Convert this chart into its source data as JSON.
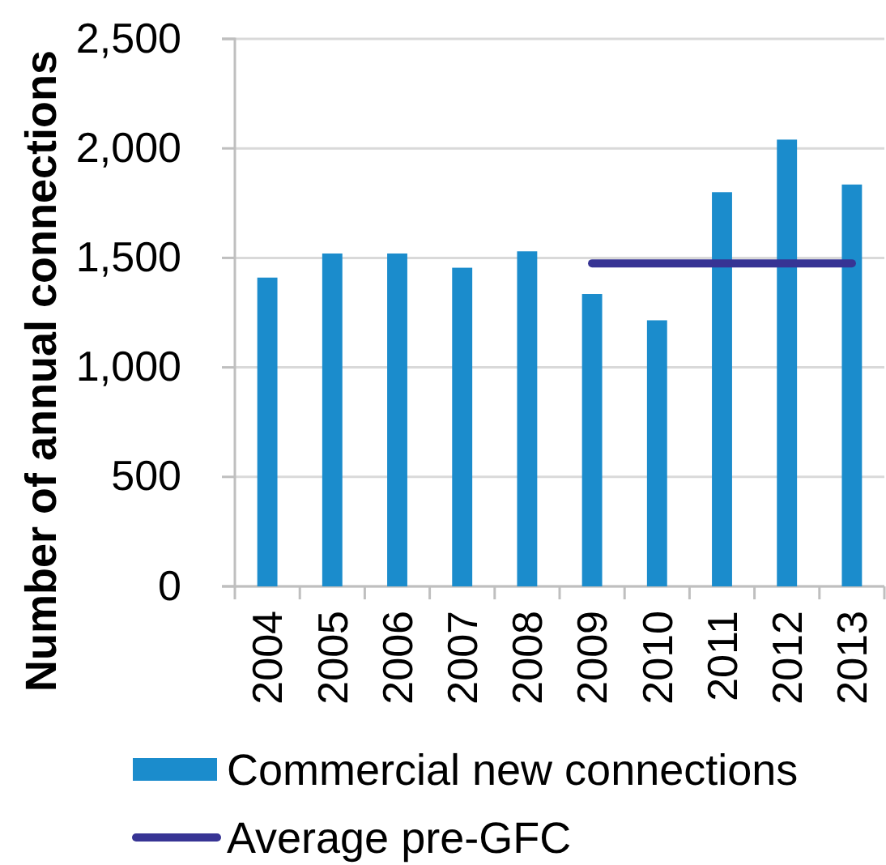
{
  "chart_data": {
    "type": "bar",
    "ylabel": "Number of annual connections",
    "categories": [
      "2004",
      "2005",
      "2006",
      "2007",
      "2008",
      "2009",
      "2010",
      "2011",
      "2012",
      "2013"
    ],
    "series": [
      {
        "name": "Commercial new connections",
        "color": "#1b8ccc",
        "values": [
          1410,
          1520,
          1520,
          1455,
          1530,
          1335,
          1215,
          1800,
          2040,
          1835
        ]
      },
      {
        "name": "Average pre-GFC",
        "type": "line",
        "color": "#373494",
        "values": [
          null,
          null,
          null,
          null,
          null,
          1475,
          1475,
          1475,
          1475,
          1475
        ]
      }
    ],
    "ylim": [
      0,
      2500
    ],
    "yticks": [
      0,
      500,
      {
        "value": 1000,
        "label": "1,000"
      },
      {
        "value": 1500,
        "label": "1,500"
      },
      {
        "value": 2000,
        "label": "2,000"
      },
      {
        "value": 2500,
        "label": "2,500"
      }
    ],
    "grid": "y",
    "legend": "bottom"
  }
}
